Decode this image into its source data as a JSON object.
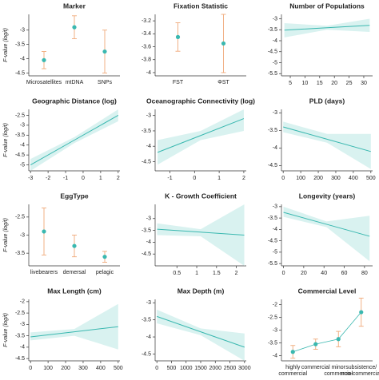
{
  "chart_data": [
    {
      "type": "errorbar",
      "title": "Marker",
      "y_label": "F-value (logit)",
      "categories": [
        "Microsatellites",
        "mtDNA",
        "SNPs"
      ],
      "values": [
        -4.05,
        -2.9,
        -3.75
      ],
      "errors": [
        0.3,
        0.4,
        0.75
      ],
      "ylim": [
        -4.6,
        -2.45
      ],
      "yticks": [
        -4.5,
        -4.0,
        -3.5,
        -3.0
      ],
      "color": "#3ab8b0",
      "error_color": "#f0a878"
    },
    {
      "type": "errorbar",
      "title": "Fixation Statistic",
      "categories": [
        "FST",
        "ΦST"
      ],
      "values": [
        -3.45,
        -3.55
      ],
      "errors": [
        0.22,
        0.45
      ],
      "ylim": [
        -4.05,
        -3.1
      ],
      "yticks": [
        -4.0,
        -3.8,
        -3.6,
        -3.4,
        -3.2
      ],
      "color": "#3ab8b0",
      "error_color": "#f0a878"
    },
    {
      "type": "line",
      "title": "Number of Populations",
      "x": [
        3,
        17.5,
        32
      ],
      "values": [
        -3.52,
        -3.41,
        -3.3
      ],
      "band_lower": [
        -3.85,
        -3.5,
        -3.6
      ],
      "band_upper": [
        -3.2,
        -3.32,
        -3.0
      ],
      "xlim": [
        2,
        33
      ],
      "xticks": [
        5,
        10,
        15,
        20,
        25,
        30
      ],
      "ylim": [
        -5.6,
        -2.8
      ],
      "yticks": [
        -5.5,
        -5.0,
        -4.5,
        -4.0,
        -3.5,
        -3.0
      ],
      "color": "#3ab8b0",
      "band_color": "#d9f2f0"
    },
    {
      "type": "line",
      "title": "Geographic Distance (log)",
      "y_label": "F-value (logit)",
      "x": [
        -3,
        -0.5,
        2
      ],
      "values": [
        -5.0,
        -3.75,
        -2.5
      ],
      "band_lower": [
        -5.3,
        -3.9,
        -2.8
      ],
      "band_upper": [
        -4.7,
        -3.6,
        -2.2
      ],
      "xlim": [
        -3.1,
        2.1
      ],
      "xticks": [
        -3,
        -2,
        -1,
        0,
        1,
        2
      ],
      "ylim": [
        -5.3,
        -2.2
      ],
      "yticks": [
        -5.0,
        -4.5,
        -4.0,
        -3.5,
        -3.0,
        -2.5
      ],
      "color": "#3ab8b0",
      "band_color": "#d9f2f0"
    },
    {
      "type": "line",
      "title": "Oceanographic Connectivity (log)",
      "x": [
        -1.5,
        0.25,
        2
      ],
      "values": [
        -4.2,
        -3.65,
        -3.1
      ],
      "band_lower": [
        -4.6,
        -3.8,
        -3.5
      ],
      "band_upper": [
        -3.8,
        -3.5,
        -2.8
      ],
      "xlim": [
        -1.6,
        2.1
      ],
      "xticks": [
        -1,
        0,
        1,
        2
      ],
      "ylim": [
        -4.8,
        -2.8
      ],
      "yticks": [
        -4.5,
        -4.0,
        -3.5,
        -3.0
      ],
      "color": "#3ab8b0",
      "band_color": "#d9f2f0"
    },
    {
      "type": "line",
      "title": "PLD (days)",
      "x": [
        0,
        250,
        500
      ],
      "values": [
        -3.4,
        -3.75,
        -4.1
      ],
      "band_lower": [
        -3.55,
        -3.85,
        -4.6
      ],
      "band_upper": [
        -3.25,
        -3.6,
        -3.6
      ],
      "xlim": [
        -10,
        510
      ],
      "xticks": [
        0,
        100,
        200,
        300,
        400,
        500
      ],
      "ylim": [
        -4.65,
        -2.9
      ],
      "yticks": [
        -4.5,
        -4.0,
        -3.5,
        -3.0
      ],
      "color": "#3ab8b0",
      "band_color": "#d9f2f0"
    },
    {
      "type": "errorbar",
      "title": "EggType",
      "y_label": "F-value (logit)",
      "categories": [
        "livebearers",
        "demersal",
        "pelagic"
      ],
      "values": [
        -2.9,
        -3.3,
        -3.6
      ],
      "errors": [
        0.65,
        0.3,
        0.15
      ],
      "ylim": [
        -3.85,
        -2.15
      ],
      "yticks": [
        -3.5,
        -3.0,
        -2.5
      ],
      "color": "#3ab8b0",
      "error_color": "#f0a878"
    },
    {
      "type": "line",
      "title": "K - Growth Coefficient",
      "x": [
        0,
        1.1,
        2.2
      ],
      "values": [
        -3.45,
        -3.575,
        -3.7
      ],
      "band_lower": [
        -3.7,
        -3.75,
        -5.0
      ],
      "band_upper": [
        -3.2,
        -3.45,
        -2.4
      ],
      "xlim": [
        -0.05,
        2.25
      ],
      "xticks": [
        0.5,
        1.0,
        1.5,
        2.0
      ],
      "ylim": [
        -5.0,
        -2.4
      ],
      "yticks": [
        -4.5,
        -4.0,
        -3.5,
        -3.0
      ],
      "color": "#3ab8b0",
      "band_color": "#d9f2f0"
    },
    {
      "type": "line",
      "title": "Longevity (years)",
      "x": [
        0,
        42.5,
        85
      ],
      "values": [
        -3.25,
        -3.775,
        -4.3
      ],
      "band_lower": [
        -3.45,
        -3.9,
        -5.4
      ],
      "band_upper": [
        -3.0,
        -3.65,
        -3.4
      ],
      "xlim": [
        -2,
        88
      ],
      "xticks": [
        0,
        20,
        40,
        60,
        80
      ],
      "ylim": [
        -5.6,
        -2.9
      ],
      "yticks": [
        -5.5,
        -5.0,
        -4.5,
        -4.0,
        -3.5,
        -3.0
      ],
      "color": "#3ab8b0",
      "band_color": "#d9f2f0"
    },
    {
      "type": "line",
      "title": "Max Length (cm)",
      "y_label": "F-value (logit)",
      "x": [
        0,
        250,
        500
      ],
      "values": [
        -3.55,
        -3.325,
        -3.1
      ],
      "band_lower": [
        -3.7,
        -3.5,
        -4.1
      ],
      "band_upper": [
        -3.35,
        -3.2,
        -2.1
      ],
      "xlim": [
        -10,
        510
      ],
      "xticks": [
        0,
        100,
        200,
        300,
        400,
        500
      ],
      "ylim": [
        -4.6,
        -1.9
      ],
      "yticks": [
        -4.5,
        -4.0,
        -3.5,
        -3.0,
        -2.5,
        -2.0
      ],
      "color": "#3ab8b0",
      "band_color": "#d9f2f0"
    },
    {
      "type": "line",
      "title": "Max Depth (m)",
      "x": [
        0,
        1500,
        3000
      ],
      "values": [
        -3.4,
        -3.85,
        -4.3
      ],
      "band_lower": [
        -3.6,
        -3.95,
        -4.7
      ],
      "band_upper": [
        -3.2,
        -3.75,
        -3.9
      ],
      "xlim": [
        -60,
        3060
      ],
      "xticks": [
        0,
        500,
        1000,
        1500,
        2000,
        2500,
        3000
      ],
      "ylim": [
        -4.7,
        -2.9
      ],
      "yticks": [
        -4.5,
        -4.0,
        -3.5,
        -3.0
      ],
      "color": "#3ab8b0",
      "band_color": "#d9f2f0"
    },
    {
      "type": "errorbar",
      "title": "Commercial Level",
      "connected": true,
      "categories": [
        [
          "highly",
          "commercial"
        ],
        [
          "commercial"
        ],
        [
          "minor",
          "commercial"
        ],
        [
          "subsistence/",
          "non-commercial"
        ]
      ],
      "values": [
        -3.85,
        -3.55,
        -3.35,
        -2.3
      ],
      "errors": [
        0.25,
        0.2,
        0.3,
        0.55
      ],
      "ylim": [
        -4.2,
        -1.8
      ],
      "yticks": [
        -4.0,
        -3.5,
        -3.0,
        -2.5,
        -2.0
      ],
      "color": "#3ab8b0",
      "error_color": "#f0a878"
    }
  ]
}
